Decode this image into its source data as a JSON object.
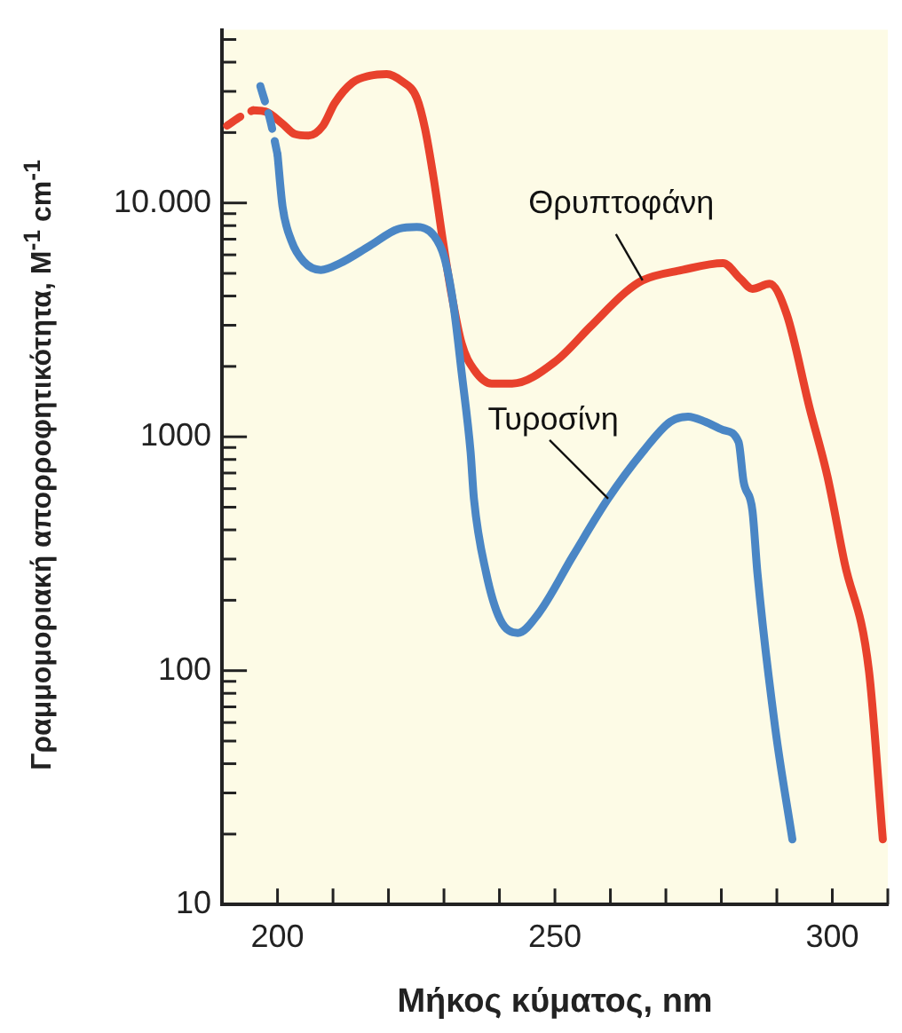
{
  "chart_data": {
    "type": "line",
    "xlabel": "Μήκος κύματος, nm",
    "ylabel": "Γραμμομοριακή απορροφητικότητα, M$^{-1}$ cm$^{-1}$",
    "log": "y",
    "xlim": [
      190,
      310
    ],
    "xticks": [
      200,
      {
        "value": 210,
        "label": null
      },
      {
        "value": 220,
        "label": null
      },
      {
        "value": 230,
        "label": null
      },
      {
        "value": 240,
        "label": null
      },
      250,
      {
        "value": 260,
        "label": null
      },
      {
        "value": 270,
        "label": null
      },
      {
        "value": 280,
        "label": null
      },
      {
        "value": 290,
        "label": null
      },
      300,
      {
        "value": 310,
        "label": null
      }
    ],
    "ylim": [
      10,
      55000
    ],
    "yticks": [
      10,
      {
        "value": 20,
        "label": null
      },
      {
        "value": 30,
        "label": null
      },
      {
        "value": 40,
        "label": null
      },
      {
        "value": 50,
        "label": null
      },
      {
        "value": 60,
        "label": null
      },
      {
        "value": 70,
        "label": null
      },
      {
        "value": 80,
        "label": null
      },
      {
        "value": 90,
        "label": null
      },
      100,
      {
        "value": 200,
        "label": null
      },
      {
        "value": 300,
        "label": null
      },
      {
        "value": 400,
        "label": null
      },
      {
        "value": 500,
        "label": null
      },
      {
        "value": 600,
        "label": null
      },
      {
        "value": 700,
        "label": null
      },
      {
        "value": 800,
        "label": null
      },
      {
        "value": 900,
        "label": null
      },
      1000,
      {
        "value": 2000,
        "label": null
      },
      {
        "value": 3000,
        "label": null
      },
      {
        "value": 4000,
        "label": null
      },
      {
        "value": 5000,
        "label": null
      },
      {
        "value": 6000,
        "label": null
      },
      {
        "value": 7000,
        "label": null
      },
      {
        "value": 8000,
        "label": null
      },
      {
        "value": 9000,
        "label": null
      },
      {
        "value": 10000,
        "label": "10.000"
      },
      {
        "value": 20000,
        "label": null
      },
      {
        "value": 30000,
        "label": null
      },
      {
        "value": 40000,
        "label": null
      },
      {
        "value": 50000,
        "label": null
      }
    ],
    "grid": false,
    "legend": false,
    "marker": "none",
    "series": [
      {
        "color": "#e9432e",
        "line_style": "dashed",
        "x": [
          190.9,
          193.7,
          195.6
        ],
        "values": [
          21400,
          23700,
          24900
        ]
      },
      {
        "color": "#e8412c",
        "line_style": "solid",
        "x": [
          195.6,
          197.8,
          200.9,
          203.1,
          205.6,
          208.2,
          210.3,
          213.5,
          216.6,
          219.7,
          222.3,
          225.1,
          226.6,
          228.2,
          229.8,
          231.3,
          233.2,
          235.4,
          238.6,
          242.3,
          250.2,
          256.4,
          262.7,
          265.8,
          273.0,
          280.3,
          283.4,
          285.6,
          288.7,
          291.8,
          295.9,
          299.1,
          302.2,
          306.6,
          309.1
        ],
        "values": [
          24900,
          24600,
          21800,
          19700,
          19400,
          21400,
          26700,
          32700,
          35000,
          35600,
          33300,
          28100,
          20700,
          12500,
          6900,
          4150,
          2500,
          1940,
          1690,
          1690,
          2110,
          2960,
          4150,
          4670,
          5170,
          5530,
          4750,
          4290,
          4510,
          3330,
          1330,
          680,
          290,
          100,
          19
        ]
      },
      {
        "color": "#4c88c7",
        "line_style": "dashed",
        "x": [
          196.9,
          198.7,
          200.0
        ],
        "values": [
          31600,
          22500,
          16100
        ]
      },
      {
        "color": "#4a86c5",
        "line_style": "solid",
        "x": [
          200.0,
          200.9,
          202.5,
          204.7,
          207.8,
          211.3,
          216.6,
          221.9,
          225.1,
          228.2,
          230.1,
          231.7,
          233.2,
          234.8,
          235.4,
          237.6,
          240.1,
          243.3,
          247.0,
          253.3,
          259.6,
          265.8,
          270.8,
          274.0,
          277.1,
          280.3,
          283.1,
          284.0,
          285.6,
          286.5,
          289.7,
          292.8
        ],
        "values": [
          16100,
          9670,
          6890,
          5620,
          5170,
          5530,
          6550,
          7760,
          7890,
          7250,
          5820,
          3680,
          1870,
          860,
          544,
          262,
          166,
          145,
          175,
          311,
          544,
          860,
          1160,
          1220,
          1160,
          1070,
          950,
          644,
          483,
          262,
          57,
          19
        ]
      }
    ],
    "annotations": [
      {
        "text": "Θρυπτοφάνη",
        "x": 265.8,
        "y": 4670
      },
      {
        "text": "Τυροσίνη",
        "x": 259.6,
        "y": 544
      }
    ]
  }
}
